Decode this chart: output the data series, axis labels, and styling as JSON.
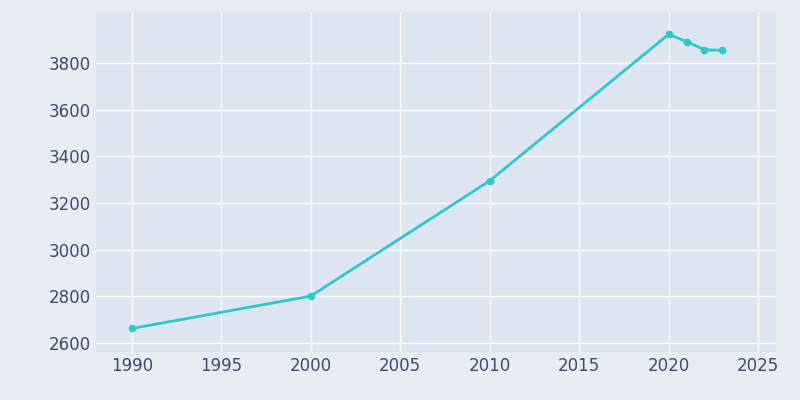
{
  "years": [
    1990,
    2000,
    2010,
    2020,
    2021,
    2022,
    2023
  ],
  "population": [
    2661,
    2800,
    3295,
    3924,
    3893,
    3858,
    3855
  ],
  "line_color": "#2ec8c8",
  "marker_color": "#2ec8c8",
  "bg_color": "#e8edf4",
  "plot_bg_color": "#dce5f0",
  "grid_color": "#ffffff",
  "text_color": "#3d4b6e",
  "xlim": [
    1988,
    2026
  ],
  "ylim": [
    2560,
    4020
  ],
  "xticks": [
    1990,
    1995,
    2000,
    2005,
    2010,
    2015,
    2020,
    2025
  ],
  "yticks": [
    2600,
    2800,
    3000,
    3200,
    3400,
    3600,
    3800
  ],
  "line_width": 2.0,
  "marker_size": 4.5,
  "tick_labelsize": 12,
  "figsize": [
    8.0,
    4.0
  ],
  "dpi": 100
}
